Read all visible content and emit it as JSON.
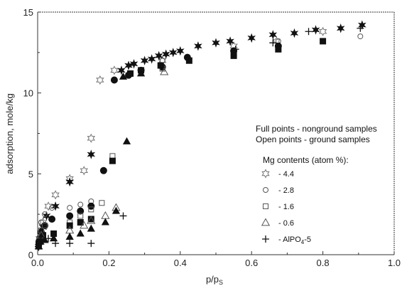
{
  "chart_data": {
    "type": "scatter",
    "xlabel": "p/p",
    "xlabel_sub": "S",
    "ylabel": "adsorption, mole/kg",
    "xlim": [
      0.0,
      1.0
    ],
    "ylim": [
      0,
      15
    ],
    "x_ticks": [
      "0.0",
      "0.2",
      "0.4",
      "0.6",
      "0.8",
      "1.0"
    ],
    "x_tick_values": [
      0.0,
      0.2,
      0.4,
      0.6,
      0.8,
      1.0
    ],
    "y_ticks": [
      "0",
      "5",
      "10",
      "15"
    ],
    "y_tick_values": [
      0,
      5,
      10,
      15
    ],
    "grid": false,
    "notes": [
      "Full points - nonground samples",
      "Open points - ground samples"
    ],
    "legend_title": "Mg contents (atom %):",
    "legend_placement": "right",
    "series": [
      {
        "name": "- 4.4",
        "marker": "star",
        "filled": [
          [
            0.003,
            0.5
          ],
          [
            0.006,
            0.8
          ],
          [
            0.01,
            1.2
          ],
          [
            0.015,
            1.7
          ],
          [
            0.025,
            2.4
          ],
          [
            0.05,
            3.0
          ],
          [
            0.09,
            4.5
          ],
          [
            0.15,
            6.2
          ],
          [
            0.235,
            11.4
          ],
          [
            0.255,
            11.7
          ],
          [
            0.27,
            11.8
          ],
          [
            0.3,
            12.0
          ],
          [
            0.32,
            12.1
          ],
          [
            0.34,
            12.3
          ],
          [
            0.36,
            12.4
          ],
          [
            0.38,
            12.5
          ],
          [
            0.4,
            12.6
          ],
          [
            0.45,
            12.9
          ],
          [
            0.5,
            13.1
          ],
          [
            0.54,
            13.2
          ],
          [
            0.6,
            13.4
          ],
          [
            0.66,
            13.6
          ],
          [
            0.72,
            13.7
          ],
          [
            0.78,
            13.9
          ],
          [
            0.85,
            14.0
          ],
          [
            0.91,
            14.2
          ]
        ],
        "open": [
          [
            0.005,
            1.0
          ],
          [
            0.015,
            2.0
          ],
          [
            0.03,
            3.0
          ],
          [
            0.05,
            3.7
          ],
          [
            0.09,
            4.7
          ],
          [
            0.13,
            5.2
          ],
          [
            0.15,
            7.2
          ],
          [
            0.175,
            10.8
          ],
          [
            0.215,
            11.4
          ],
          [
            0.35,
            12.0
          ],
          [
            0.55,
            12.9
          ],
          [
            0.67,
            13.2
          ],
          [
            0.8,
            13.8
          ]
        ]
      },
      {
        "name": "- 2.8",
        "marker": "circle",
        "filled": [
          [
            0.004,
            0.8
          ],
          [
            0.01,
            1.4
          ],
          [
            0.02,
            1.8
          ],
          [
            0.04,
            2.2
          ],
          [
            0.09,
            2.4
          ],
          [
            0.12,
            2.7
          ],
          [
            0.15,
            3.0
          ],
          [
            0.185,
            5.2
          ],
          [
            0.215,
            10.8
          ],
          [
            0.255,
            11.1
          ],
          [
            0.29,
            11.4
          ],
          [
            0.35,
            11.6
          ],
          [
            0.42,
            12.2
          ],
          [
            0.55,
            12.6
          ],
          [
            0.675,
            12.9
          ]
        ],
        "open": [
          [
            0.004,
            1.0
          ],
          [
            0.01,
            2.0
          ],
          [
            0.02,
            2.5
          ],
          [
            0.04,
            2.9
          ],
          [
            0.09,
            2.9
          ],
          [
            0.12,
            3.1
          ],
          [
            0.15,
            3.3
          ],
          [
            0.35,
            12.0
          ],
          [
            0.675,
            13.2
          ],
          [
            0.905,
            13.5
          ]
        ]
      },
      {
        "name": "- 1.6",
        "marker": "square",
        "filled": [
          [
            0.003,
            0.6
          ],
          [
            0.008,
            1.0
          ],
          [
            0.015,
            1.2
          ],
          [
            0.045,
            1.3
          ],
          [
            0.09,
            1.8
          ],
          [
            0.12,
            2.0
          ],
          [
            0.15,
            2.2
          ],
          [
            0.21,
            5.8
          ],
          [
            0.26,
            11.2
          ],
          [
            0.29,
            11.4
          ],
          [
            0.345,
            11.7
          ],
          [
            0.425,
            12.0
          ],
          [
            0.55,
            12.3
          ],
          [
            0.675,
            12.7
          ],
          [
            0.8,
            13.2
          ]
        ],
        "open": [
          [
            0.01,
            1.5
          ],
          [
            0.02,
            1.8
          ],
          [
            0.09,
            2.0
          ],
          [
            0.12,
            2.4
          ],
          [
            0.15,
            2.8
          ],
          [
            0.18,
            3.2
          ],
          [
            0.21,
            6.1
          ],
          [
            0.35,
            11.5
          ]
        ]
      },
      {
        "name": "- 0.6",
        "marker": "triangle",
        "filled": [
          [
            0.003,
            0.5
          ],
          [
            0.008,
            0.8
          ],
          [
            0.02,
            0.9
          ],
          [
            0.045,
            1.0
          ],
          [
            0.09,
            1.1
          ],
          [
            0.12,
            1.3
          ],
          [
            0.15,
            1.6
          ],
          [
            0.19,
            2.0
          ],
          [
            0.22,
            2.7
          ],
          [
            0.25,
            7.0
          ],
          [
            0.24,
            11.0
          ],
          [
            0.29,
            11.2
          ]
        ],
        "open": [
          [
            0.01,
            1.2
          ],
          [
            0.09,
            1.5
          ],
          [
            0.13,
            1.8
          ],
          [
            0.15,
            2.1
          ],
          [
            0.19,
            2.4
          ],
          [
            0.22,
            2.9
          ],
          [
            0.355,
            11.3
          ]
        ]
      },
      {
        "name": "- AlPO",
        "name_sub": "4",
        "name_suffix": "-5",
        "marker": "plus",
        "filled": [],
        "open": [
          [
            0.002,
            0.5
          ],
          [
            0.005,
            0.8
          ],
          [
            0.01,
            0.9
          ],
          [
            0.03,
            1.0
          ],
          [
            0.05,
            0.7
          ],
          [
            0.09,
            0.7
          ],
          [
            0.15,
            0.7
          ],
          [
            0.24,
            2.4
          ],
          [
            0.555,
            12.7
          ],
          [
            0.66,
            13.1
          ],
          [
            0.76,
            13.8
          ],
          [
            0.905,
            14.0
          ]
        ]
      }
    ]
  }
}
